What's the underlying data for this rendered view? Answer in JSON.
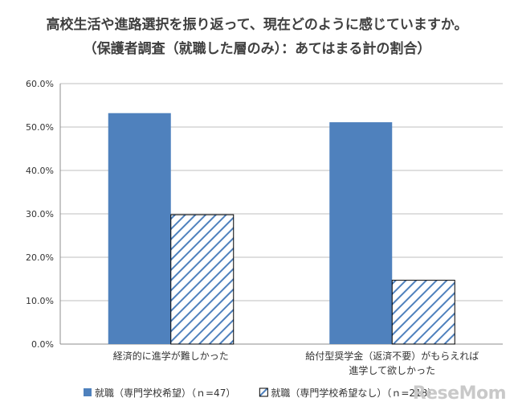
{
  "chart_data": {
    "type": "bar",
    "title": "高校生活や進路選択を振り返って、現在どのように感じていますか。",
    "subtitle": "（保護者調査（就職した層のみ）：あてはまる計の割合）",
    "categories": [
      [
        "経済的に進学が難しかった"
      ],
      [
        "給付型奨学金（返済不要）がもらえれば",
        "進学して欲しかった"
      ]
    ],
    "series": [
      {
        "name": "就職（専門学校希望）（ｎ=47）",
        "values": [
          53.2,
          51.1
        ],
        "color": "#4f81bd",
        "pattern": "solid"
      },
      {
        "name": "就職（専門学校希望なし）（ｎ=218）",
        "values": [
          29.8,
          14.7
        ],
        "color": "#4f81bd",
        "pattern": "hatched"
      }
    ],
    "ylim": [
      0,
      60
    ],
    "yticks": [
      "0.0%",
      "10.0%",
      "20.0%",
      "30.0%",
      "40.0%",
      "50.0%",
      "60.0%"
    ],
    "grid": true,
    "legend_position": "bottom"
  },
  "watermark": "ReseMom"
}
